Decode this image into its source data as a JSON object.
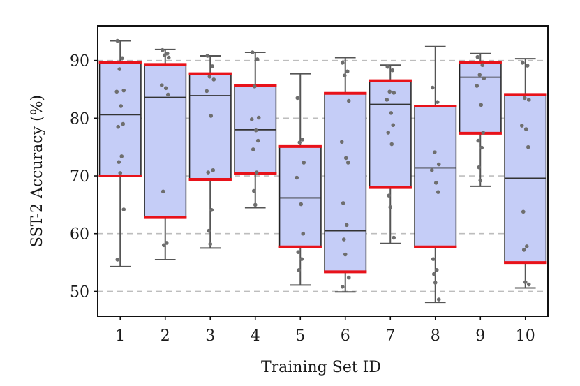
{
  "chart_data": {
    "type": "box",
    "xlabel": "Training Set ID",
    "ylabel": "SST-2 Accuracy (%)",
    "ylim": [
      45.7,
      96.0
    ],
    "yticks": [
      50,
      60,
      70,
      80,
      90
    ],
    "grid": "horizontal dashed at y ticks",
    "colors": {
      "box_fill": "#c5cdf7",
      "quartile_edge": "#e8121a",
      "median": "#333333",
      "whisker": "#555555",
      "points": "#6e6e6e",
      "grid": "#bdbdbd"
    },
    "categories": [
      "1",
      "2",
      "3",
      "4",
      "5",
      "6",
      "7",
      "8",
      "9",
      "10"
    ],
    "boxes": [
      {
        "id": "1",
        "min": 54.3,
        "q1": 70.0,
        "median": 80.6,
        "q3": 89.6,
        "max": 93.4,
        "points": [
          93.4,
          90.4,
          88.5,
          84.8,
          84.6,
          82.1,
          79.0,
          78.5,
          73.4,
          72.4,
          70.5,
          64.2,
          55.5
        ]
      },
      {
        "id": "2",
        "min": 55.5,
        "q1": 62.8,
        "median": 83.6,
        "q3": 89.3,
        "max": 91.9,
        "points": [
          91.8,
          91.2,
          90.9,
          90.5,
          85.7,
          85.2,
          84.1,
          67.3,
          58.4,
          58.0
        ]
      },
      {
        "id": "3",
        "min": 57.5,
        "q1": 69.4,
        "median": 83.9,
        "q3": 87.7,
        "max": 90.8,
        "points": [
          90.8,
          89.0,
          87.2,
          86.7,
          84.7,
          80.4,
          71.0,
          70.6,
          64.1,
          60.5,
          58.2
        ]
      },
      {
        "id": "4",
        "min": 64.5,
        "q1": 70.4,
        "median": 78.0,
        "q3": 85.7,
        "max": 91.4,
        "points": [
          91.4,
          90.2,
          85.5,
          80.1,
          79.8,
          77.9,
          76.1,
          74.6,
          70.6,
          67.4,
          65.0
        ]
      },
      {
        "id": "5",
        "min": 51.1,
        "q1": 57.7,
        "median": 66.2,
        "q3": 75.1,
        "max": 87.7,
        "points": [
          83.5,
          76.3,
          75.8,
          72.3,
          69.7,
          65.1,
          60.0,
          56.8,
          55.6,
          53.7
        ]
      },
      {
        "id": "6",
        "min": 49.9,
        "q1": 53.4,
        "median": 60.5,
        "q3": 84.3,
        "max": 90.5,
        "points": [
          89.6,
          88.1,
          87.4,
          83.0,
          75.9,
          73.1,
          72.3,
          65.3,
          61.5,
          59.0,
          56.4,
          52.4,
          50.8
        ]
      },
      {
        "id": "7",
        "min": 58.3,
        "q1": 68.0,
        "median": 82.4,
        "q3": 86.5,
        "max": 89.2,
        "points": [
          88.9,
          88.3,
          84.6,
          84.4,
          83.2,
          80.9,
          78.8,
          77.5,
          75.5,
          66.6,
          64.6,
          59.3
        ]
      },
      {
        "id": "8",
        "min": 48.1,
        "q1": 57.7,
        "median": 71.4,
        "q3": 82.1,
        "max": 92.4,
        "points": [
          85.3,
          82.8,
          74.1,
          72.0,
          71.0,
          68.8,
          67.2,
          55.6,
          53.7,
          53.0,
          51.5,
          48.6
        ]
      },
      {
        "id": "9",
        "min": 68.2,
        "q1": 77.4,
        "median": 87.1,
        "q3": 89.6,
        "max": 91.2,
        "points": [
          90.6,
          89.2,
          87.5,
          86.9,
          85.6,
          82.3,
          77.5,
          76.1,
          74.9,
          71.5,
          69.2
        ]
      },
      {
        "id": "10",
        "min": 50.6,
        "q1": 55.0,
        "median": 69.6,
        "q3": 84.1,
        "max": 90.3,
        "points": [
          89.6,
          89.1,
          83.5,
          83.2,
          78.7,
          78.1,
          75.0,
          63.8,
          57.8,
          57.2,
          51.6,
          51.2
        ]
      }
    ]
  }
}
